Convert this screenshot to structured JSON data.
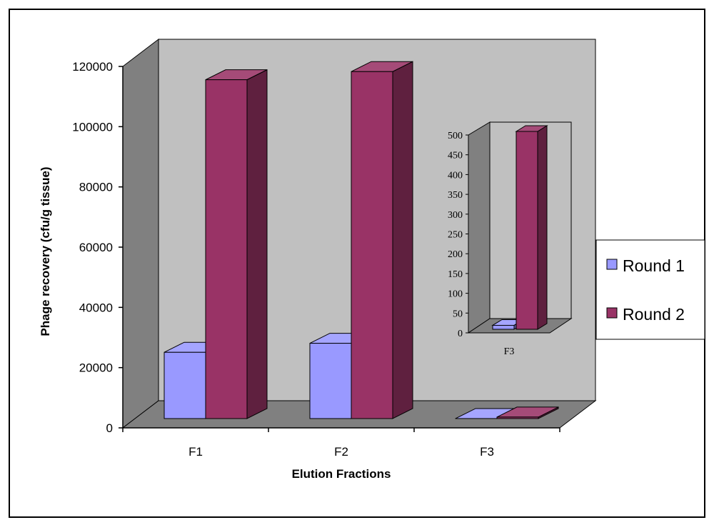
{
  "chart_data": [
    {
      "type": "bar",
      "categories": [
        "F1",
        "F2",
        "F3"
      ],
      "series": [
        {
          "name": "Round 1",
          "values": [
            22000,
            25000,
            10
          ]
        },
        {
          "name": "Round 2",
          "values": [
            112500,
            115200,
            500
          ]
        }
      ],
      "xlabel": "Elution Fractions",
      "ylabel": "Phage recovery  (cfu/g tissue)",
      "ylim": [
        0,
        120000
      ],
      "yticks": [
        0,
        20000,
        40000,
        60000,
        80000,
        100000,
        120000
      ],
      "grid": false,
      "legend": "right",
      "colors": {
        "Round 1": "#9999ff",
        "Round 2": "#993366",
        "wall": "#c0c0c0",
        "side_wall": "#808080"
      }
    },
    {
      "type": "bar",
      "categories": [
        "F3"
      ],
      "series": [
        {
          "name": "Round 1",
          "values": [
            10
          ]
        },
        {
          "name": "Round 2",
          "values": [
            500
          ]
        }
      ],
      "ylim": [
        0,
        500
      ],
      "yticks": [
        0,
        50,
        100,
        150,
        200,
        250,
        300,
        350,
        400,
        450,
        500
      ],
      "grid": false
    }
  ]
}
